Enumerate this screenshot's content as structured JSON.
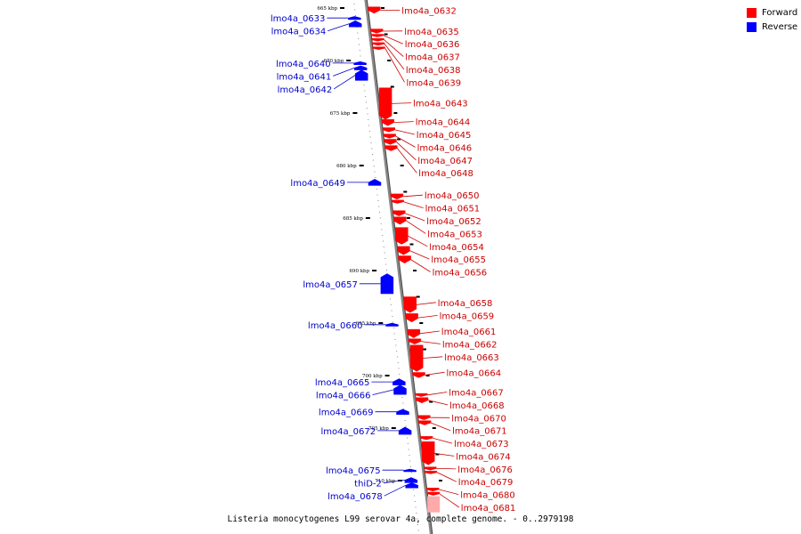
{
  "caption": "Listeria monocytogenes L99 serovar 4a, complete genome. - 0..2979198",
  "legend": [
    {
      "label": "Forward",
      "color": "#ff0000"
    },
    {
      "label": "Reverse",
      "color": "#0000ff"
    }
  ],
  "colors": {
    "forward": "#ff0000",
    "forward_label": "#cc0000",
    "reverse": "#0000ff",
    "reverse_label": "#0000cc",
    "backbone": "#888888",
    "faded": "#ffaaaa"
  },
  "scale_unit": "kbp",
  "ticks_kbp": [
    665,
    670,
    675,
    680,
    685,
    690,
    695,
    700,
    705,
    710
  ],
  "genes": [
    {
      "name": "lmo4a_0632",
      "strand": "forward",
      "start_kbp": 664.9,
      "end_kbp": 665.5
    },
    {
      "name": "lmo4a_0633",
      "strand": "reverse",
      "start_kbp": 665.8,
      "end_kbp": 666.1
    },
    {
      "name": "lmo4a_0634",
      "strand": "reverse",
      "start_kbp": 666.2,
      "end_kbp": 666.8
    },
    {
      "name": "lmo4a_0635",
      "strand": "forward",
      "start_kbp": 667.0,
      "end_kbp": 667.4
    },
    {
      "name": "lmo4a_0636",
      "strand": "forward",
      "start_kbp": 667.5,
      "end_kbp": 667.7
    },
    {
      "name": "lmo4a_0637",
      "strand": "forward",
      "start_kbp": 667.9,
      "end_kbp": 668.1
    },
    {
      "name": "lmo4a_0638",
      "strand": "forward",
      "start_kbp": 668.3,
      "end_kbp": 668.5
    },
    {
      "name": "lmo4a_0639",
      "strand": "forward",
      "start_kbp": 668.7,
      "end_kbp": 668.9
    },
    {
      "name": "lmo4a_0640",
      "strand": "reverse",
      "start_kbp": 670.1,
      "end_kbp": 670.4
    },
    {
      "name": "lmo4a_0641",
      "strand": "reverse",
      "start_kbp": 670.5,
      "end_kbp": 670.9
    },
    {
      "name": "lmo4a_0642",
      "strand": "reverse",
      "start_kbp": 670.9,
      "end_kbp": 671.9
    },
    {
      "name": "lmo4a_0643",
      "strand": "forward",
      "start_kbp": 672.6,
      "end_kbp": 675.6
    },
    {
      "name": "lmo4a_0644",
      "strand": "forward",
      "start_kbp": 675.6,
      "end_kbp": 676.2
    },
    {
      "name": "lmo4a_0645",
      "strand": "forward",
      "start_kbp": 676.4,
      "end_kbp": 676.8
    },
    {
      "name": "lmo4a_0646",
      "strand": "forward",
      "start_kbp": 677.0,
      "end_kbp": 677.4
    },
    {
      "name": "lmo4a_0647",
      "strand": "forward",
      "start_kbp": 677.5,
      "end_kbp": 678.0
    },
    {
      "name": "lmo4a_0648",
      "strand": "forward",
      "start_kbp": 678.1,
      "end_kbp": 678.6
    },
    {
      "name": "lmo4a_0649",
      "strand": "reverse",
      "start_kbp": 681.3,
      "end_kbp": 681.9
    },
    {
      "name": "lmo4a_0650",
      "strand": "forward",
      "start_kbp": 682.7,
      "end_kbp": 683.2
    },
    {
      "name": "lmo4a_0651",
      "strand": "forward",
      "start_kbp": 683.3,
      "end_kbp": 683.6
    },
    {
      "name": "lmo4a_0652",
      "strand": "forward",
      "start_kbp": 684.3,
      "end_kbp": 684.8
    },
    {
      "name": "lmo4a_0653",
      "strand": "forward",
      "start_kbp": 684.9,
      "end_kbp": 685.6
    },
    {
      "name": "lmo4a_0654",
      "strand": "forward",
      "start_kbp": 685.9,
      "end_kbp": 687.5
    },
    {
      "name": "lmo4a_0655",
      "strand": "forward",
      "start_kbp": 687.7,
      "end_kbp": 688.5
    },
    {
      "name": "lmo4a_0656",
      "strand": "forward",
      "start_kbp": 688.6,
      "end_kbp": 689.3
    },
    {
      "name": "lmo4a_0657",
      "strand": "reverse",
      "start_kbp": 690.3,
      "end_kbp": 692.2
    },
    {
      "name": "lmo4a_0658",
      "strand": "forward",
      "start_kbp": 692.5,
      "end_kbp": 694.0
    },
    {
      "name": "lmo4a_0659",
      "strand": "forward",
      "start_kbp": 694.1,
      "end_kbp": 694.9
    },
    {
      "name": "lmo4a_0660",
      "strand": "reverse",
      "start_kbp": 695.0,
      "end_kbp": 695.3
    },
    {
      "name": "lmo4a_0661",
      "strand": "forward",
      "start_kbp": 695.6,
      "end_kbp": 696.4
    },
    {
      "name": "lmo4a_0662",
      "strand": "forward",
      "start_kbp": 696.5,
      "end_kbp": 697.0
    },
    {
      "name": "lmo4a_0663",
      "strand": "forward",
      "start_kbp": 697.1,
      "end_kbp": 699.6
    },
    {
      "name": "lmo4a_0664",
      "strand": "forward",
      "start_kbp": 699.7,
      "end_kbp": 700.2
    },
    {
      "name": "lmo4a_0665",
      "strand": "reverse",
      "start_kbp": 700.3,
      "end_kbp": 700.9
    },
    {
      "name": "lmo4a_0666",
      "strand": "reverse",
      "start_kbp": 700.9,
      "end_kbp": 701.8
    },
    {
      "name": "lmo4a_0667",
      "strand": "forward",
      "start_kbp": 701.7,
      "end_kbp": 702.0
    },
    {
      "name": "lmo4a_0668",
      "strand": "forward",
      "start_kbp": 702.1,
      "end_kbp": 702.6
    },
    {
      "name": "lmo4a_0669",
      "strand": "reverse",
      "start_kbp": 703.2,
      "end_kbp": 703.7
    },
    {
      "name": "lmo4a_0670",
      "strand": "forward",
      "start_kbp": 703.8,
      "end_kbp": 704.2
    },
    {
      "name": "lmo4a_0671",
      "strand": "forward",
      "start_kbp": 704.3,
      "end_kbp": 704.7
    },
    {
      "name": "lmo4a_0672",
      "strand": "reverse",
      "start_kbp": 704.9,
      "end_kbp": 705.6
    },
    {
      "name": "lmo4a_0673",
      "strand": "forward",
      "start_kbp": 705.8,
      "end_kbp": 706.1
    },
    {
      "name": "lmo4a_0674",
      "strand": "forward",
      "start_kbp": 706.3,
      "end_kbp": 708.5
    },
    {
      "name": "lmo4a_0675",
      "strand": "reverse",
      "start_kbp": 708.9,
      "end_kbp": 709.1
    },
    {
      "name": "lmo4a_0676",
      "strand": "forward",
      "start_kbp": 708.7,
      "end_kbp": 709.0
    },
    {
      "name": "lmo4a_0679",
      "strand": "forward",
      "start_kbp": 709.1,
      "end_kbp": 709.3
    },
    {
      "name": "thiD-2",
      "strand": "reverse",
      "start_kbp": 709.7,
      "end_kbp": 710.2
    },
    {
      "name": "lmo4a_0678",
      "strand": "reverse",
      "start_kbp": 710.2,
      "end_kbp": 710.7
    },
    {
      "name": "lmo4a_0680",
      "strand": "forward",
      "start_kbp": 710.7,
      "end_kbp": 711.0
    },
    {
      "name": "lmo4a_0681",
      "strand": "forward",
      "start_kbp": 711.1,
      "end_kbp": 711.4
    }
  ]
}
